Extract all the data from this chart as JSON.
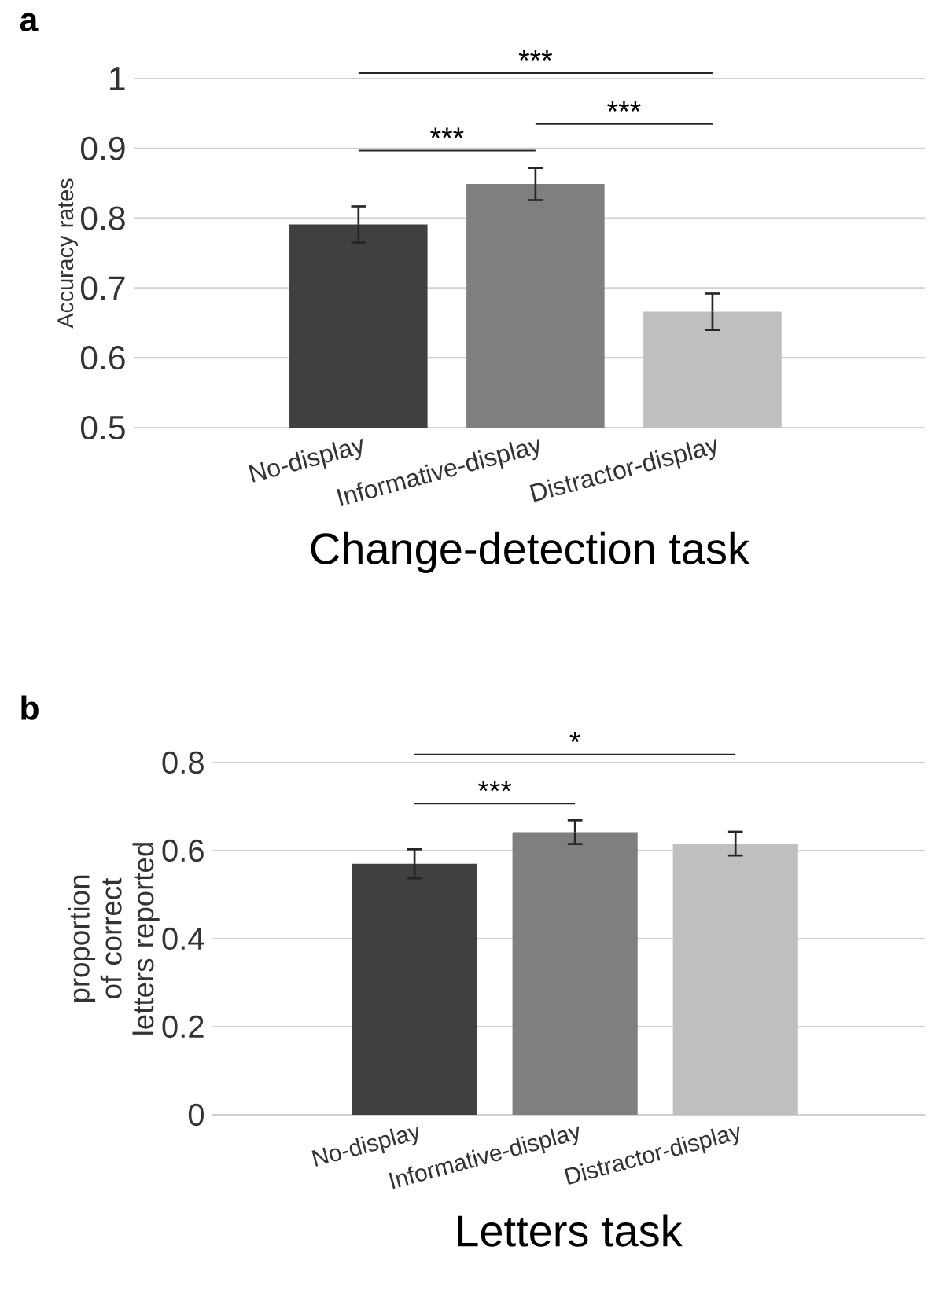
{
  "chart_data": [
    {
      "type": "bar",
      "title": "a",
      "xlabel": "Change-detection task",
      "ylabel": "Accuracy rates",
      "categories": [
        "No-display",
        "Informative-display",
        "Distractor-display"
      ],
      "values": [
        0.791,
        0.849,
        0.666
      ],
      "errors": [
        0.026,
        0.023,
        0.026
      ],
      "colors": [
        "#404040",
        "#7f7f7f",
        "#bfbfbf"
      ],
      "ylim": [
        0.5,
        1
      ],
      "yticks": [
        0.5,
        0.6,
        0.7,
        0.8,
        0.9,
        1
      ],
      "grid": "y",
      "annotations": [
        "***",
        "***",
        "***"
      ]
    },
    {
      "type": "bar",
      "title": "b",
      "xlabel": "Letters task",
      "ylabel": "proportion of correct letters reported",
      "categories": [
        "No-display",
        "Informative-display",
        "Distractor-display"
      ],
      "values": [
        0.57,
        0.642,
        0.616
      ],
      "errors": [
        0.033,
        0.027,
        0.027
      ],
      "colors": [
        "#404040",
        "#7f7f7f",
        "#bfbfbf"
      ],
      "ylim": [
        0,
        0.8
      ],
      "yticks": [
        0,
        0.2,
        0.4,
        0.6,
        0.8
      ],
      "grid": "y",
      "annotations": [
        "*",
        "***"
      ]
    }
  ]
}
